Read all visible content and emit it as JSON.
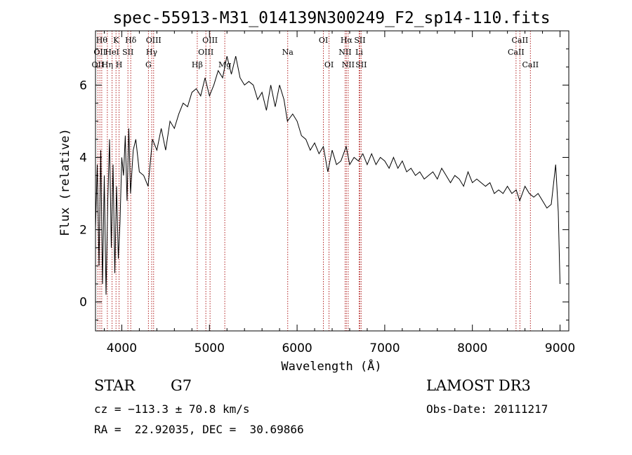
{
  "chart_data": {
    "type": "line",
    "title": "spec-55913-M31_014139N300249_F2_sp14-110.fits",
    "xlabel": "Wavelength (Å)",
    "ylabel": "Flux (relative)",
    "xlim": [
      3700,
      9100
    ],
    "ylim": [
      -0.8,
      7.5
    ],
    "xticks": [
      4000,
      5000,
      6000,
      7000,
      8000,
      9000
    ],
    "yticks": [
      0,
      2,
      4,
      6
    ],
    "grid": false,
    "line_color": "#000000",
    "marker_color": "#b22222",
    "series": [
      {
        "x": [
          3700,
          3720,
          3740,
          3760,
          3780,
          3800,
          3820,
          3840,
          3860,
          3880,
          3900,
          3920,
          3940,
          3960,
          3980,
          4000,
          4020,
          4040,
          4060,
          4080,
          4100,
          4130,
          4160,
          4200,
          4250,
          4300,
          4350,
          4400,
          4450,
          4500,
          4550,
          4600,
          4650,
          4700,
          4750,
          4800,
          4850,
          4900,
          4950,
          5000,
          5050,
          5100,
          5150,
          5200,
          5250,
          5300,
          5350,
          5400,
          5450,
          5500,
          5550,
          5600,
          5650,
          5700,
          5750,
          5800,
          5850,
          5890,
          5950,
          6000,
          6050,
          6100,
          6150,
          6200,
          6250,
          6300,
          6350,
          6400,
          6450,
          6500,
          6560,
          6600,
          6650,
          6700,
          6750,
          6800,
          6850,
          6900,
          6950,
          7000,
          7050,
          7100,
          7150,
          7200,
          7250,
          7300,
          7350,
          7400,
          7450,
          7500,
          7550,
          7600,
          7650,
          7700,
          7750,
          7800,
          7850,
          7900,
          7950,
          8000,
          8050,
          8100,
          8150,
          8200,
          8250,
          8300,
          8350,
          8400,
          8450,
          8500,
          8540,
          8600,
          8650,
          8700,
          8750,
          8800,
          8850,
          8900,
          8950,
          8980,
          9000
        ],
        "y": [
          2.0,
          3.8,
          1.0,
          4.2,
          0.5,
          3.5,
          0.2,
          2.8,
          4.5,
          1.5,
          3.8,
          0.8,
          3.2,
          1.2,
          2.2,
          4.0,
          3.5,
          4.6,
          2.8,
          4.8,
          3.0,
          4.2,
          4.5,
          3.6,
          3.5,
          3.2,
          4.5,
          4.2,
          4.8,
          4.2,
          5.0,
          4.8,
          5.2,
          5.5,
          5.4,
          5.8,
          5.9,
          5.7,
          6.2,
          5.7,
          6.0,
          6.4,
          6.2,
          6.8,
          6.3,
          6.8,
          6.2,
          6.0,
          6.1,
          6.0,
          5.6,
          5.8,
          5.3,
          6.0,
          5.4,
          6.0,
          5.6,
          5.0,
          5.2,
          5.0,
          4.6,
          4.5,
          4.2,
          4.4,
          4.1,
          4.3,
          3.6,
          4.2,
          3.8,
          3.9,
          4.3,
          3.8,
          4.0,
          3.9,
          4.1,
          3.8,
          4.1,
          3.8,
          4.0,
          3.9,
          3.7,
          4.0,
          3.7,
          3.9,
          3.6,
          3.7,
          3.5,
          3.6,
          3.4,
          3.5,
          3.6,
          3.4,
          3.7,
          3.5,
          3.3,
          3.5,
          3.4,
          3.2,
          3.6,
          3.3,
          3.4,
          3.3,
          3.2,
          3.3,
          3.0,
          3.1,
          3.0,
          3.2,
          3.0,
          3.1,
          2.8,
          3.2,
          3.0,
          2.9,
          3.0,
          2.8,
          2.6,
          2.7,
          3.8,
          2.5,
          0.5
        ]
      }
    ],
    "lines": [
      {
        "wave": 3727,
        "labels": [
          "OII"
        ],
        "row": 2
      },
      {
        "wave": 3750,
        "labels": [
          "OII"
        ],
        "row": 1
      },
      {
        "wave": 3771,
        "labels": [
          "Hθ"
        ],
        "row": 0
      },
      {
        "wave": 3835,
        "labels": [
          "Hη"
        ],
        "row": 2
      },
      {
        "wave": 3889,
        "labels": [
          "HeI"
        ],
        "row": 1
      },
      {
        "wave": 3934,
        "labels": [
          "K"
        ],
        "row": 0
      },
      {
        "wave": 3969,
        "labels": [
          "H"
        ],
        "row": 2
      },
      {
        "wave": 4070,
        "labels": [
          "SII"
        ],
        "row": 1
      },
      {
        "wave": 4102,
        "labels": [
          "Hδ"
        ],
        "row": 0
      },
      {
        "wave": 4304,
        "labels": [
          "G"
        ],
        "row": 2
      },
      {
        "wave": 4341,
        "labels": [
          "Hγ"
        ],
        "row": 1
      },
      {
        "wave": 4363,
        "labels": [
          "OIII"
        ],
        "row": 0
      },
      {
        "wave": 4861,
        "labels": [
          "Hβ"
        ],
        "row": 2
      },
      {
        "wave": 4959,
        "labels": [
          "OIII"
        ],
        "row": 1
      },
      {
        "wave": 5007,
        "labels": [
          "OIII"
        ],
        "row": 0
      },
      {
        "wave": 5175,
        "labels": [
          "Mg"
        ],
        "row": 2
      },
      {
        "wave": 5893,
        "labels": [
          "Na"
        ],
        "row": 1
      },
      {
        "wave": 6300,
        "labels": [
          "OI"
        ],
        "row": 0
      },
      {
        "wave": 6364,
        "labels": [
          "OI"
        ],
        "row": 2
      },
      {
        "wave": 6548,
        "labels": [
          "NII"
        ],
        "row": 1
      },
      {
        "wave": 6563,
        "labels": [
          "Hα"
        ],
        "row": 0
      },
      {
        "wave": 6583,
        "labels": [
          "NII"
        ],
        "row": 2
      },
      {
        "wave": 6708,
        "labels": [
          "Li"
        ],
        "row": 1
      },
      {
        "wave": 6716,
        "labels": [
          "SII"
        ],
        "row": 0
      },
      {
        "wave": 6731,
        "labels": [
          "SII"
        ],
        "row": 2
      },
      {
        "wave": 8498,
        "labels": [
          "CaII"
        ],
        "row": 1
      },
      {
        "wave": 8542,
        "labels": [
          "CaII"
        ],
        "row": 0
      },
      {
        "wave": 8662,
        "labels": [
          "CaII"
        ],
        "row": 2
      }
    ]
  },
  "info": {
    "class": "STAR",
    "subclass": "G7",
    "survey": "LAMOST DR3",
    "cz": "cz = −113.3 ± 70.8 km/s",
    "obsdate": "Obs-Date: 20111217",
    "radec": "RA =  22.92035, DEC =  30.69866"
  }
}
